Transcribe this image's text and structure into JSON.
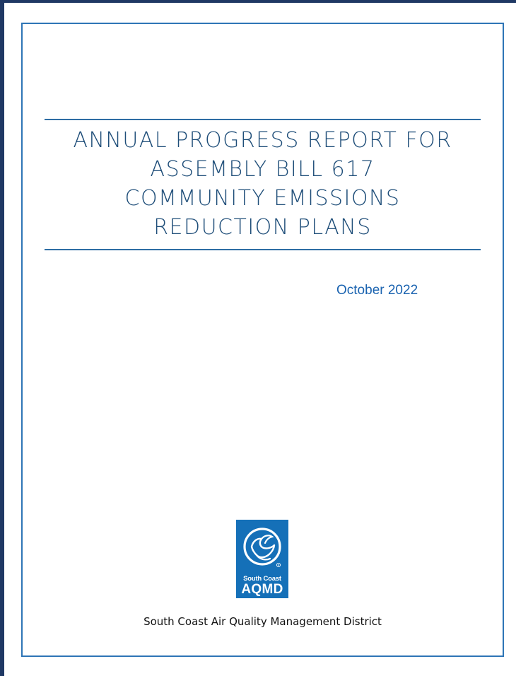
{
  "document": {
    "title_lines": [
      "ANNUAL PROGRESS REPORT FOR",
      "ASSEMBLY BILL 617",
      "COMMUNITY EMISSIONS",
      "REDUCTION PLANS"
    ],
    "date": "October 2022",
    "logo": {
      "line1": "South Coast",
      "line2": "AQMD",
      "icon": "dove-circle-logo"
    },
    "organization": "South Coast Air Quality Management District"
  },
  "colors": {
    "frame": "#1f3864",
    "border": "#2e75b6",
    "title": "#1f4e79",
    "date": "#1a63b0",
    "logo_bg": "#1570b8"
  }
}
